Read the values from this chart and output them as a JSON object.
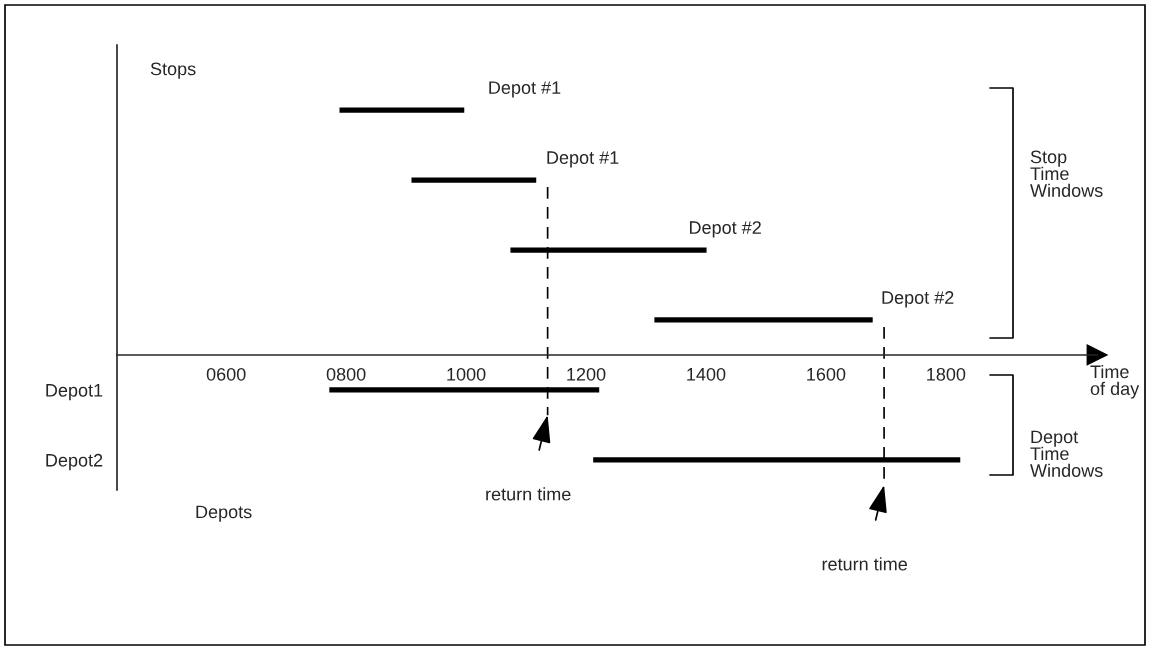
{
  "chart_data": {
    "type": "bar",
    "orientation": "horizontal",
    "categories": [
      null,
      null,
      null,
      null,
      "Depot1",
      "Depot2"
    ],
    "base": [
      789,
      909,
      1074,
      1314,
      772,
      1212
    ],
    "values": [
      208,
      208,
      327,
      364,
      450,
      612
    ],
    "color": "#000000",
    "xlim": [
      418,
      2052
    ],
    "xticks": [
      {
        "value": 600,
        "label": "0600"
      },
      {
        "value": 800,
        "label": "0800"
      },
      1000,
      1200,
      1400,
      1600,
      1800
    ],
    "xlabel": "Time\nof day",
    "ref_lines": [
      {
        "axis": "x",
        "value": 1136,
        "line_style": "dashed"
      },
      {
        "axis": "x",
        "value": 1697,
        "line_style": "dashed"
      }
    ],
    "annotations": [
      "Stops",
      "Stop\nTime\nWindows",
      "Depots",
      "Depot\nTime\nWindows",
      "Depot #1",
      "Depot #1",
      "Depot #2",
      "Depot #2",
      "return time",
      "return time"
    ],
    "grid": false,
    "legend": false
  }
}
